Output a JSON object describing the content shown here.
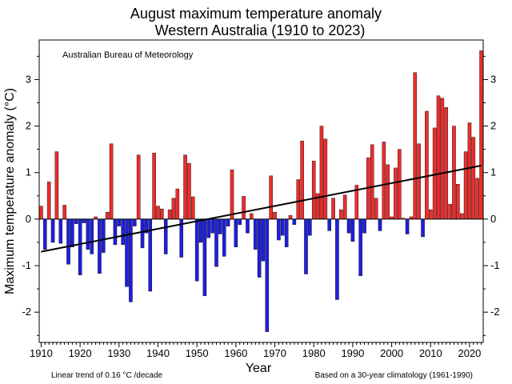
{
  "chart_data": {
    "type": "bar",
    "title": "August maximum temperature anomaly",
    "subtitle": "Western Australia (1910 to 2023)",
    "credit": "Australian Bureau of Meteorology",
    "xlabel": "Year",
    "ylabel": "Maximum temperature anomaly (°C)",
    "trend_note": "Linear trend of 0.16 °C /decade",
    "baseline_note": "Based on a 30-year climatology (1961-1990)",
    "xlim": [
      1909.5,
      2023.5
    ],
    "ylim": [
      -2.65,
      3.85
    ],
    "xticks": [
      "1910",
      "1920",
      "1930",
      "1940",
      "1950",
      "1960",
      "1970",
      "1980",
      "1990",
      "2000",
      "2010",
      "2020"
    ],
    "yticks": [
      "-2",
      "-1",
      "0",
      "1",
      "2",
      "3"
    ],
    "grid": false,
    "positive_color": "#ee2c2c",
    "negative_color": "#1f1fdd",
    "trend_color": "#000000",
    "trend": {
      "start_year": 1910,
      "start_value": -0.7,
      "end_year": 2023,
      "end_value": 1.15
    },
    "x": [
      1910,
      1911,
      1912,
      1913,
      1914,
      1915,
      1916,
      1917,
      1918,
      1919,
      1920,
      1921,
      1922,
      1923,
      1924,
      1925,
      1926,
      1927,
      1928,
      1929,
      1930,
      1931,
      1932,
      1933,
      1934,
      1935,
      1936,
      1937,
      1938,
      1939,
      1940,
      1941,
      1942,
      1943,
      1944,
      1945,
      1946,
      1947,
      1948,
      1949,
      1950,
      1951,
      1952,
      1953,
      1954,
      1955,
      1956,
      1957,
      1958,
      1959,
      1960,
      1961,
      1962,
      1963,
      1964,
      1965,
      1966,
      1967,
      1968,
      1969,
      1970,
      1971,
      1972,
      1973,
      1974,
      1975,
      1976,
      1977,
      1978,
      1979,
      1980,
      1981,
      1982,
      1983,
      1984,
      1985,
      1986,
      1987,
      1988,
      1989,
      1990,
      1991,
      1992,
      1993,
      1994,
      1995,
      1996,
      1997,
      1998,
      1999,
      2000,
      2001,
      2002,
      2003,
      2004,
      2005,
      2006,
      2007,
      2008,
      2009,
      2010,
      2011,
      2012,
      2013,
      2014,
      2015,
      2016,
      2017,
      2018,
      2019,
      2020,
      2021,
      2022,
      2023
    ],
    "values": [
      0.28,
      -0.65,
      0.8,
      -0.5,
      1.45,
      -0.52,
      0.3,
      -0.97,
      -0.6,
      -0.1,
      -1.2,
      -0.08,
      -0.65,
      -0.75,
      0.05,
      -1.17,
      -0.72,
      0.15,
      1.62,
      -0.55,
      -0.15,
      -0.55,
      -1.45,
      -1.78,
      -0.15,
      1.38,
      -0.62,
      -0.3,
      -1.55,
      1.42,
      0.28,
      0.22,
      -0.75,
      0.2,
      0.45,
      0.65,
      -0.82,
      1.38,
      1.2,
      0.48,
      -1.33,
      -0.5,
      -1.65,
      -0.4,
      -0.3,
      -1.02,
      -0.32,
      -0.8,
      -0.15,
      1.06,
      -0.6,
      -0.12,
      0.49,
      -0.3,
      0.12,
      -0.65,
      -1.25,
      -0.9,
      -2.42,
      0.93,
      0.15,
      -0.45,
      -0.35,
      -0.6,
      0.08,
      -0.12,
      0.85,
      1.68,
      -1.18,
      -0.35,
      1.25,
      0.55,
      2.0,
      1.72,
      -0.25,
      0.45,
      -1.73,
      0.2,
      0.52,
      -0.3,
      -0.48,
      0.73,
      -1.22,
      -0.3,
      1.32,
      1.6,
      0.45,
      -0.25,
      1.66,
      1.17,
      0.05,
      1.1,
      1.5,
      0.02,
      -0.32,
      0.05,
      3.15,
      1.62,
      -0.38,
      2.32,
      0.2,
      1.96,
      2.65,
      2.6,
      2.4,
      0.32,
      2.0,
      0.75,
      0.12,
      1.45,
      2.07,
      1.76,
      0.88,
      3.62
    ]
  }
}
